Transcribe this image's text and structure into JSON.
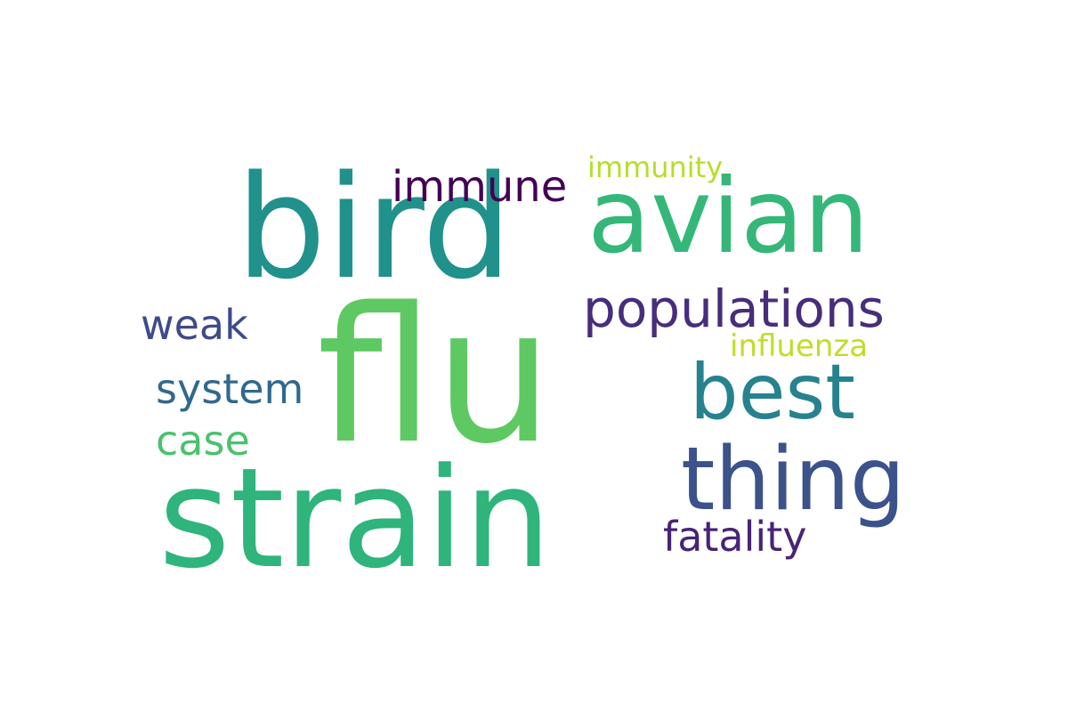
{
  "words": {
    "flu": {
      "text": "flu",
      "color": "#5ec962"
    },
    "bird": {
      "text": "bird",
      "color": "#21918c"
    },
    "strain": {
      "text": "strain",
      "color": "#2fb47c"
    },
    "avian": {
      "text": "avian",
      "color": "#35b779"
    },
    "thing": {
      "text": "thing",
      "color": "#3b528b"
    },
    "best": {
      "text": "best",
      "color": "#26828e"
    },
    "populations": {
      "text": "populations",
      "color": "#472d7b"
    },
    "immune": {
      "text": "immune",
      "color": "#440154"
    },
    "weak": {
      "text": "weak",
      "color": "#3e4a89"
    },
    "system": {
      "text": "system",
      "color": "#31688e"
    },
    "case": {
      "text": "case",
      "color": "#4ac16d"
    },
    "fatality": {
      "text": "fatality",
      "color": "#482475"
    },
    "immunity": {
      "text": "immunity",
      "color": "#b5de2b"
    },
    "influenza": {
      "text": "influenza",
      "color": "#bddf26"
    }
  }
}
